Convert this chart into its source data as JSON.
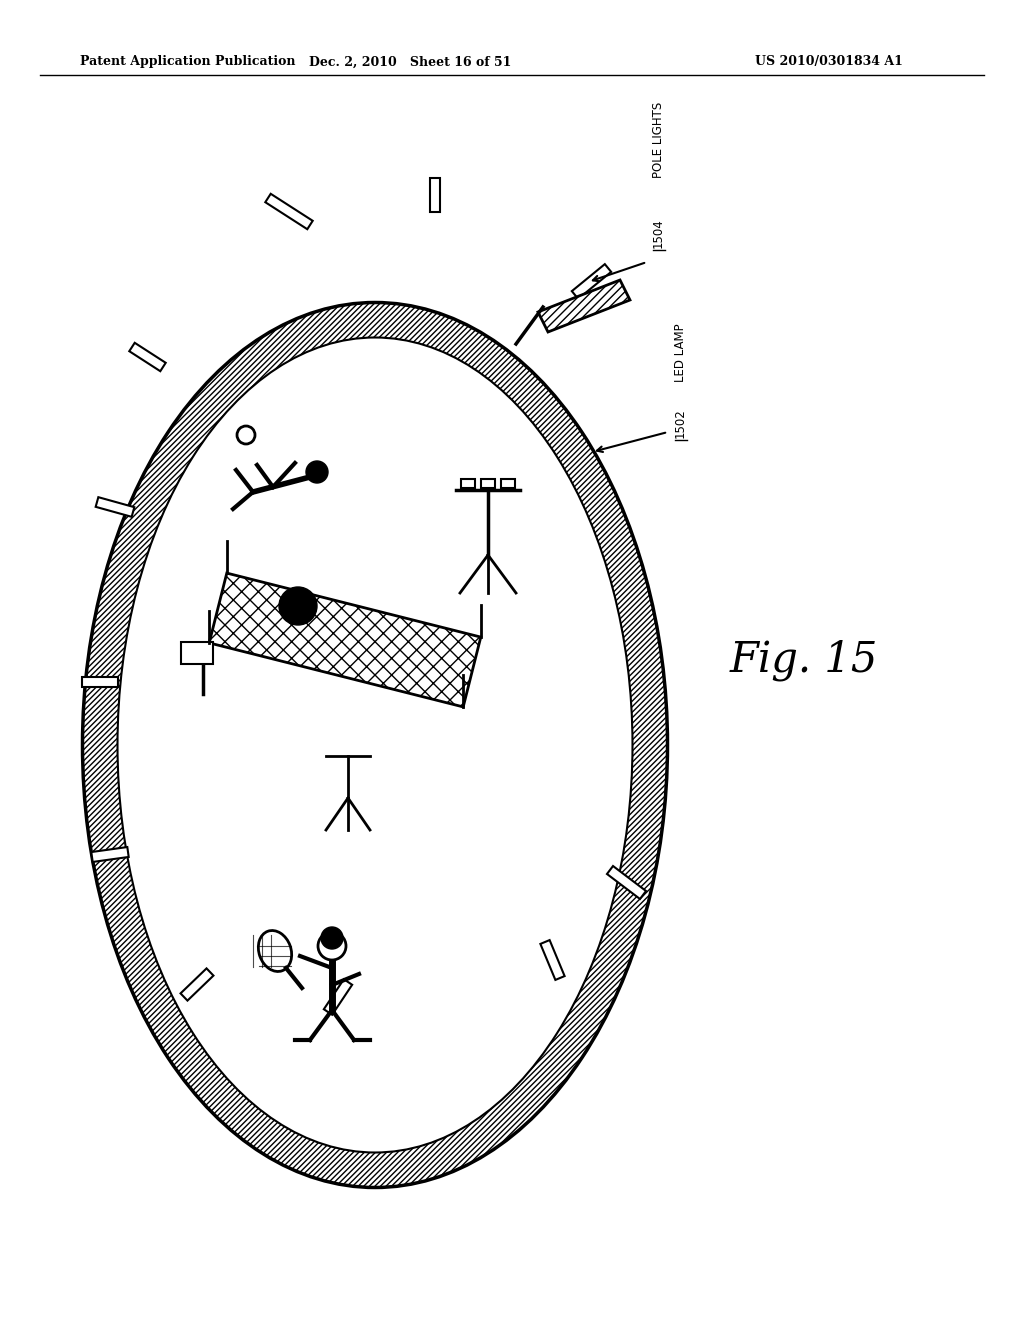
{
  "background_color": "#ffffff",
  "header_left": "Patent Application Publication",
  "header_center": "Dec. 2, 2010   Sheet 16 of 51",
  "header_right": "US 2010/0301834 A1",
  "fig_label": "Fig. 15",
  "label_pole_lights": "POLE LIGHTS",
  "label_pole_lights_num": "1504",
  "label_led_lamp": "LED LAMP",
  "label_led_lamp_num": "1502"
}
